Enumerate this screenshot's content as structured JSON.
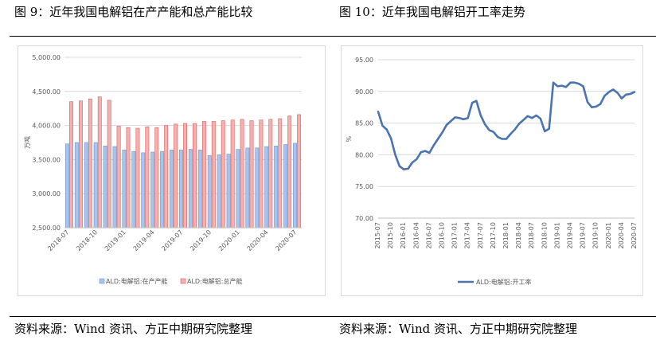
{
  "left": {
    "figure_title": "图 9：近年我国电解铝在产产能和总产能比较",
    "source": "资料来源：Wind 资讯、方正中期研究院整理"
  },
  "right": {
    "figure_title": "图 10：近年我国电解铝开工率走势",
    "source": "资料来源：Wind 资讯、方正中期研究院整理"
  },
  "chart_data": [
    {
      "type": "bar",
      "ylabel": "万吨",
      "ylim": [
        2500,
        5000
      ],
      "yticks": [
        "2,500.00",
        "3,000.00",
        "3,500.00",
        "4,000.00",
        "4,500.00",
        "5,000.00"
      ],
      "categories": [
        "2018-07",
        "2018-08",
        "2018-09",
        "2018-10",
        "2018-11",
        "2018-12",
        "2019-01",
        "2019-02",
        "2019-03",
        "2019-04",
        "2019-05",
        "2019-06",
        "2019-07",
        "2019-08",
        "2019-09",
        "2019-10",
        "2019-11",
        "2019-12",
        "2020-01",
        "2020-02",
        "2020-03",
        "2020-04",
        "2020-05",
        "2020-06",
        "2020-07"
      ],
      "xticklabels": [
        "2018-07",
        "2018-10",
        "2019-01",
        "2019-04",
        "2019-07",
        "2019-10",
        "2020-01",
        "2020-04",
        "2020-07"
      ],
      "legend_position": "bottom",
      "grid": true,
      "colors": {
        "series1": "#a9c4eb",
        "series1_edge": "#6f96d1",
        "series2": "#f4b0ae",
        "series2_edge": "#d7635f"
      },
      "series": [
        {
          "name": "ALD:电解铝:在产产能",
          "values": [
            3730,
            3750,
            3750,
            3750,
            3700,
            3690,
            3640,
            3620,
            3600,
            3610,
            3620,
            3640,
            3640,
            3650,
            3640,
            3560,
            3570,
            3580,
            3650,
            3670,
            3670,
            3690,
            3700,
            3720,
            3740
          ]
        },
        {
          "name": "ALD:电解铝:总产能",
          "values": [
            4350,
            4360,
            4390,
            4420,
            4370,
            3990,
            3970,
            3960,
            3980,
            3970,
            4000,
            4020,
            4030,
            4030,
            4060,
            4060,
            4070,
            4080,
            4090,
            4070,
            4080,
            4090,
            4100,
            4140,
            4160
          ]
        }
      ]
    },
    {
      "type": "line",
      "ylabel": "%",
      "ylim": [
        70,
        95
      ],
      "yticks": [
        "70.00",
        "75.00",
        "80.00",
        "85.00",
        "90.00",
        "95.00"
      ],
      "xticklabels": [
        "2015-07",
        "2015-10",
        "2016-01",
        "2016-04",
        "2016-07",
        "2016-10",
        "2017-01",
        "2017-04",
        "2017-07",
        "2017-10",
        "2018-01",
        "2018-04",
        "2018-07",
        "2018-10",
        "2019-01",
        "2019-04",
        "2019-07",
        "2019-10",
        "2020-01",
        "2020-04",
        "2020-07"
      ],
      "legend_position": "bottom",
      "grid": true,
      "colors": {
        "line": "#4a74b0"
      },
      "series": [
        {
          "name": "ALD:电解铝:开工率",
          "x": [
            "2015-07",
            "2015-08",
            "2015-09",
            "2015-10",
            "2015-11",
            "2015-12",
            "2016-01",
            "2016-02",
            "2016-03",
            "2016-04",
            "2016-05",
            "2016-06",
            "2016-07",
            "2016-08",
            "2016-09",
            "2016-10",
            "2016-11",
            "2016-12",
            "2017-01",
            "2017-02",
            "2017-03",
            "2017-04",
            "2017-05",
            "2017-06",
            "2017-07",
            "2017-08",
            "2017-09",
            "2017-10",
            "2017-11",
            "2017-12",
            "2018-01",
            "2018-02",
            "2018-03",
            "2018-04",
            "2018-05",
            "2018-06",
            "2018-07",
            "2018-08",
            "2018-09",
            "2018-10",
            "2018-11",
            "2018-12",
            "2019-01",
            "2019-02",
            "2019-03",
            "2019-04",
            "2019-05",
            "2019-06",
            "2019-07",
            "2019-08",
            "2019-09",
            "2019-10",
            "2019-11",
            "2019-12",
            "2020-01",
            "2020-02",
            "2020-03",
            "2020-04",
            "2020-05",
            "2020-06",
            "2020-07"
          ],
          "values": [
            86.8,
            84.6,
            84.0,
            82.6,
            80.0,
            78.2,
            77.7,
            77.8,
            78.8,
            79.3,
            80.4,
            80.6,
            80.3,
            81.5,
            82.5,
            83.5,
            84.7,
            85.3,
            85.9,
            85.8,
            85.6,
            85.8,
            88.2,
            88.5,
            86.2,
            84.8,
            83.9,
            83.6,
            82.8,
            82.5,
            82.5,
            83.3,
            84.0,
            84.9,
            85.5,
            86.1,
            85.8,
            86.2,
            85.7,
            83.7,
            84.1,
            91.4,
            90.8,
            90.9,
            90.7,
            91.4,
            91.4,
            91.2,
            90.8,
            88.3,
            87.5,
            87.6,
            88.0,
            89.3,
            89.9,
            90.3,
            89.8,
            88.9,
            89.5,
            89.6,
            89.9
          ]
        }
      ]
    }
  ]
}
